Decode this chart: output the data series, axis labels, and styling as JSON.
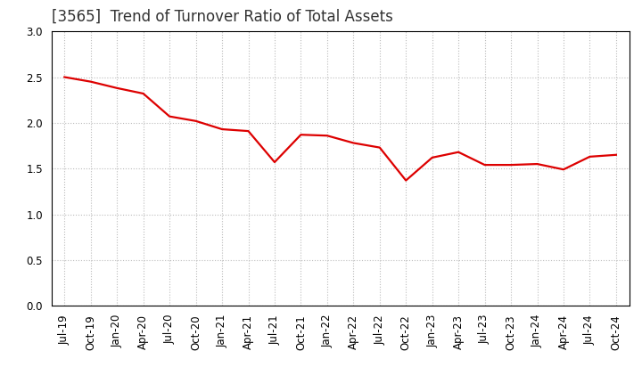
{
  "title": "[3565]  Trend of Turnover Ratio of Total Assets",
  "x_labels": [
    "Jul-19",
    "Oct-19",
    "Jan-20",
    "Apr-20",
    "Jul-20",
    "Oct-20",
    "Jan-21",
    "Apr-21",
    "Jul-21",
    "Oct-21",
    "Jan-22",
    "Apr-22",
    "Jul-22",
    "Oct-22",
    "Jan-23",
    "Apr-23",
    "Jul-23",
    "Oct-23",
    "Jan-24",
    "Apr-24",
    "Jul-24",
    "Oct-24"
  ],
  "y_values": [
    2.5,
    2.45,
    2.38,
    2.32,
    2.07,
    2.02,
    1.93,
    1.91,
    1.57,
    1.87,
    1.86,
    1.78,
    1.73,
    1.37,
    1.62,
    1.68,
    1.54,
    1.54,
    1.55,
    1.49,
    1.63,
    1.65
  ],
  "line_color": "#dd0000",
  "line_width": 1.6,
  "ylim": [
    0.0,
    3.0
  ],
  "yticks": [
    0.0,
    0.5,
    1.0,
    1.5,
    2.0,
    2.5,
    3.0
  ],
  "background_color": "#ffffff",
  "grid_color": "#bbbbbb",
  "title_fontsize": 12,
  "title_color": "#333333",
  "tick_fontsize": 8.5
}
